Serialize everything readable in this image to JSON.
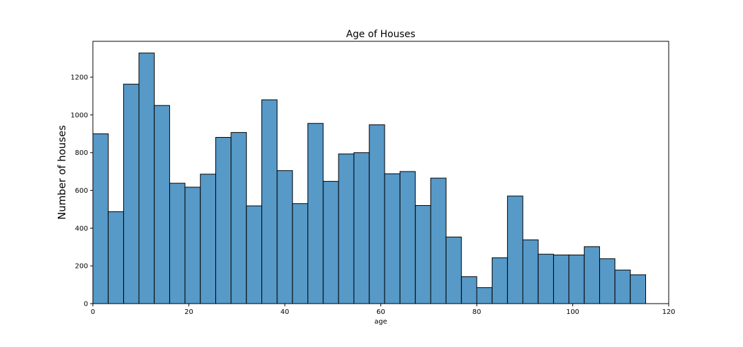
{
  "chart_data": {
    "type": "bar",
    "title": "Age of Houses",
    "xlabel": "age",
    "ylabel": "Number of houses",
    "xlim": [
      0,
      120
    ],
    "ylim": [
      0,
      1390
    ],
    "xticks": [
      0,
      20,
      40,
      60,
      80,
      100,
      120
    ],
    "yticks": [
      0,
      200,
      400,
      600,
      800,
      1000,
      1200
    ],
    "grid": false,
    "bar_color": "#5799C7",
    "bin_width": 3.2,
    "bin_edges_start": 0,
    "values": [
      900,
      487,
      1163,
      1328,
      1050,
      638,
      617,
      686,
      881,
      907,
      518,
      1080,
      705,
      530,
      955,
      648,
      793,
      800,
      948,
      688,
      700,
      520,
      665,
      353,
      143,
      85,
      243,
      570,
      338,
      262,
      258,
      258,
      302,
      238,
      178,
      153
    ]
  }
}
